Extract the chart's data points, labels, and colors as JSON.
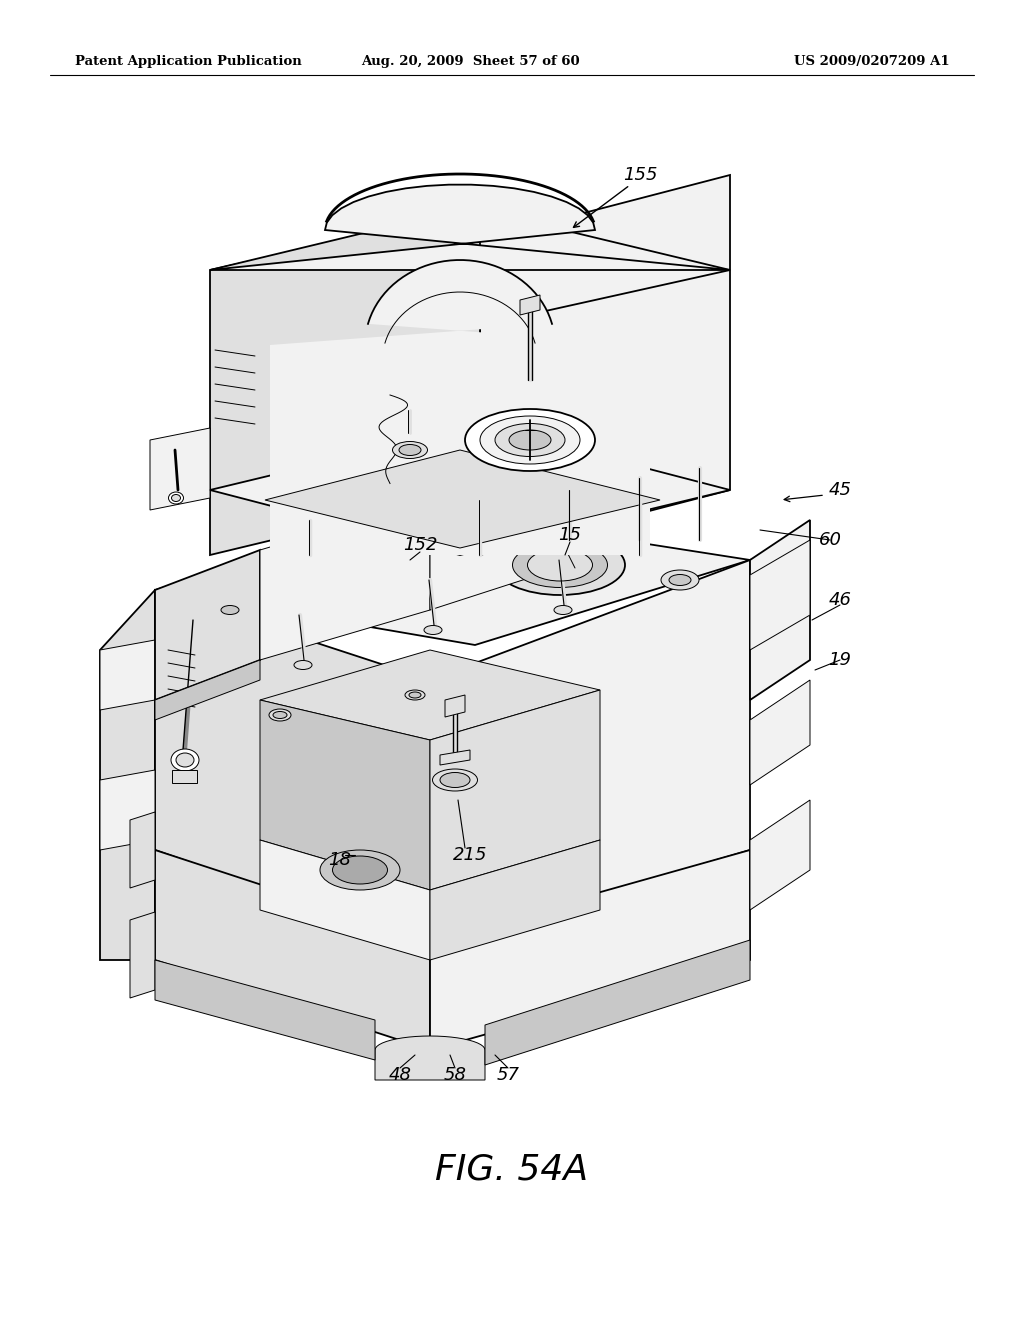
{
  "background_color": "#ffffff",
  "header_left": "Patent Application Publication",
  "header_center": "Aug. 20, 2009  Sheet 57 of 60",
  "header_right": "US 2009/0207209 A1",
  "figure_label": "FIG. 54A",
  "black": "#000000",
  "white": "#ffffff",
  "light_gray": "#f2f2f2",
  "mid_gray": "#e0e0e0",
  "dark_gray": "#c8c8c8",
  "lw_main": 1.3,
  "lw_thin": 0.7,
  "lw_bold": 2.0
}
